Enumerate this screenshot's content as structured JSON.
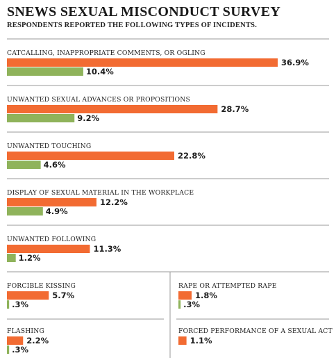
{
  "header": {
    "title": "SNEWS SEXUAL MISCONDUCT SURVEY",
    "subtitle": "RESPONDENTS REPORTED THE FOLLOWING TYPES OF INCIDENTS."
  },
  "colors": {
    "primary_bar": "#f26b32",
    "secondary_bar": "#8fb35b",
    "divider": "#9a9a9a"
  },
  "chart_data": {
    "type": "bar",
    "orientation": "horizontal",
    "title": "SNEWS SEXUAL MISCONDUCT SURVEY",
    "subtitle": "RESPONDENTS REPORTED THE FOLLOWING TYPES OF INCIDENTS.",
    "categories": [
      "CATCALLING, INAPPROPRIATE COMMENTS, OR OGLING",
      "UNWANTED SEXUAL ADVANCES OR PROPOSITIONS",
      "UNWANTED TOUCHING",
      "DISPLAY OF SEXUAL MATERIAL IN THE WORKPLACE",
      "UNWANTED FOLLOWING",
      "FORCIBLE KISSING",
      "RAPE OR ATTEMPTED RAPE",
      "FLASHING",
      "FORCED PERFORMANCE OF A SEXUAL ACT"
    ],
    "series": [
      {
        "values": [
          36.9,
          28.7,
          22.8,
          12.2,
          11.3,
          5.7,
          1.8,
          2.2,
          1.1
        ],
        "labels": [
          "36.9%",
          "28.7%",
          "22.8%",
          "12.2%",
          "11.3%",
          "5.7%",
          "1.8%",
          "2.2%",
          "1.1%"
        ],
        "color": "#f26b32"
      },
      {
        "values": [
          10.4,
          9.2,
          4.6,
          4.9,
          1.2,
          0.3,
          0.3,
          0.3,
          null
        ],
        "labels": [
          "10.4%",
          "9.2%",
          "4.6%",
          "4.9%",
          "1.2%",
          ".3%",
          ".3%",
          ".3%",
          ""
        ],
        "color": "#8fb35b"
      }
    ],
    "grid": false,
    "legend": "none"
  }
}
